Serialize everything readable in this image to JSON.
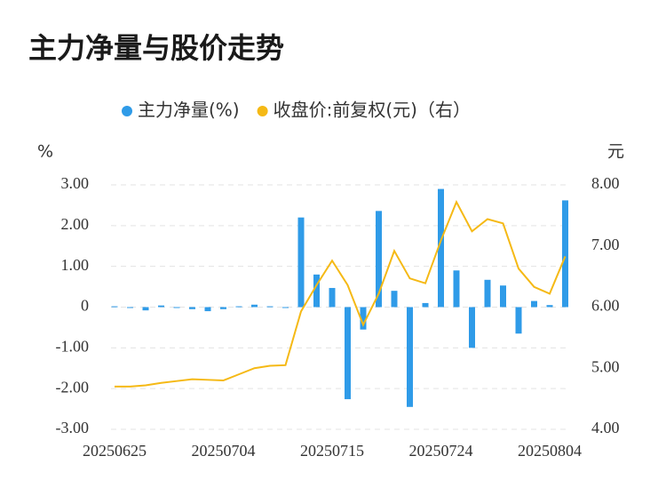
{
  "chart_data": {
    "type": "bar",
    "title": "主力净量与股价走势",
    "y_label": "%",
    "y2_label": "元",
    "categories": [
      "20250625",
      null,
      null,
      null,
      null,
      null,
      null,
      "20250704",
      null,
      null,
      null,
      null,
      null,
      null,
      "20250715",
      null,
      null,
      null,
      null,
      null,
      null,
      "20250724",
      null,
      null,
      null,
      null,
      null,
      null,
      "20250804",
      null
    ],
    "series": [
      {
        "name": "主力净量(%)",
        "type": "bar",
        "color": "#2f9be8",
        "values": [
          0.02,
          -0.02,
          -0.08,
          0.04,
          -0.02,
          -0.05,
          -0.1,
          -0.05,
          0.02,
          0.06,
          0.02,
          -0.01,
          2.2,
          0.8,
          0.47,
          -2.26,
          -0.55,
          2.36,
          0.4,
          -2.45,
          0.1,
          2.9,
          0.9,
          -1.0,
          0.67,
          0.53,
          -0.65,
          0.15,
          0.05,
          2.62
        ]
      },
      {
        "name": "收盘价:前复权(元)（右）",
        "type": "line",
        "axis": "y2",
        "color": "#f5b915",
        "values": [
          4.7,
          4.7,
          4.72,
          4.76,
          4.79,
          4.82,
          4.81,
          4.8,
          4.9,
          5.0,
          5.04,
          5.05,
          5.93,
          6.36,
          6.76,
          6.36,
          5.71,
          6.22,
          6.92,
          6.47,
          6.39,
          7.09,
          7.72,
          7.24,
          7.44,
          7.37,
          6.63,
          6.33,
          6.22,
          6.83
        ]
      }
    ],
    "ylim": [
      -3,
      3
    ],
    "yticks": [
      {
        "value": -3,
        "label": "-3.00"
      },
      {
        "value": -2,
        "label": "-2.00"
      },
      {
        "value": -1,
        "label": "-1.00"
      },
      0,
      {
        "value": 1,
        "label": "1.00"
      },
      {
        "value": 2,
        "label": "2.00"
      },
      {
        "value": 3,
        "label": "3.00"
      }
    ],
    "y2lim": [
      4,
      8
    ],
    "y2ticks": [
      {
        "value": 4,
        "label": "4.00"
      },
      {
        "value": 5,
        "label": "5.00"
      },
      {
        "value": 6,
        "label": "6.00"
      },
      {
        "value": 7,
        "label": "7.00"
      },
      {
        "value": 8,
        "label": "8.00"
      }
    ],
    "grid": true,
    "legend": "top"
  }
}
